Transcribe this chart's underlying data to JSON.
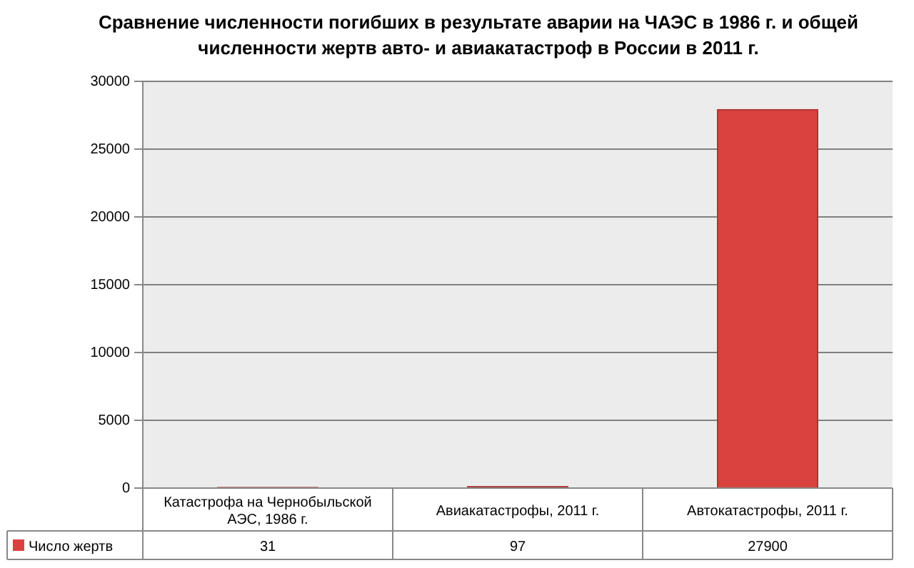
{
  "chart_data": {
    "type": "bar",
    "title": "Сравнение численности погибших в результате аварии на ЧАЭС в 1986 г. и общей численности жертв авто- и авиакатастроф в России в 2011 г.",
    "categories": [
      "Катастрофа на Чернобыльской АЭС, 1986 г.",
      "Авиакатастрофы, 2011 г.",
      "Автокатастрофы, 2011 г."
    ],
    "series": [
      {
        "name": "Число жертв",
        "color": "#d9423f",
        "values": [
          31,
          97,
          27900
        ]
      }
    ],
    "ylim": [
      0,
      30000
    ],
    "yticks": [
      0,
      5000,
      10000,
      15000,
      20000,
      25000,
      30000
    ],
    "grid": "y",
    "data_labels": true,
    "legend": "bottom left"
  }
}
